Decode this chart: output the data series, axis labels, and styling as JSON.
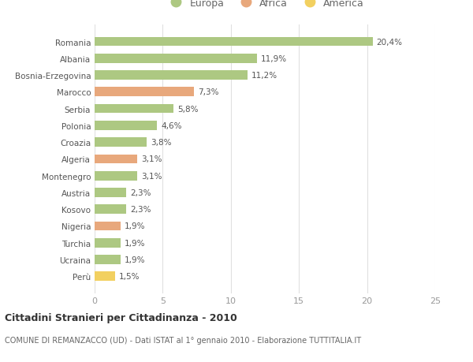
{
  "countries": [
    "Romania",
    "Albania",
    "Bosnia-Erzegovina",
    "Marocco",
    "Serbia",
    "Polonia",
    "Croazia",
    "Algeria",
    "Montenegro",
    "Austria",
    "Kosovo",
    "Nigeria",
    "Turchia",
    "Ucraina",
    "Perù"
  ],
  "values": [
    20.4,
    11.9,
    11.2,
    7.3,
    5.8,
    4.6,
    3.8,
    3.1,
    3.1,
    2.3,
    2.3,
    1.9,
    1.9,
    1.9,
    1.5
  ],
  "labels": [
    "20,4%",
    "11,9%",
    "11,2%",
    "7,3%",
    "5,8%",
    "4,6%",
    "3,8%",
    "3,1%",
    "3,1%",
    "2,3%",
    "2,3%",
    "1,9%",
    "1,9%",
    "1,9%",
    "1,5%"
  ],
  "continents": [
    "Europa",
    "Europa",
    "Europa",
    "Africa",
    "Europa",
    "Europa",
    "Europa",
    "Africa",
    "Europa",
    "Europa",
    "Europa",
    "Africa",
    "Europa",
    "Europa",
    "America"
  ],
  "colors": {
    "Europa": "#adc882",
    "Africa": "#e8a87c",
    "America": "#f2d060"
  },
  "xlim": [
    0,
    25
  ],
  "xticks": [
    0,
    5,
    10,
    15,
    20,
    25
  ],
  "title": "Cittadini Stranieri per Cittadinanza - 2010",
  "subtitle": "COMUNE DI REMANZACCO (UD) - Dati ISTAT al 1° gennaio 2010 - Elaborazione TUTTITALIA.IT",
  "bg_color": "#ffffff",
  "grid_color": "#e0e0e0",
  "bar_height": 0.55
}
